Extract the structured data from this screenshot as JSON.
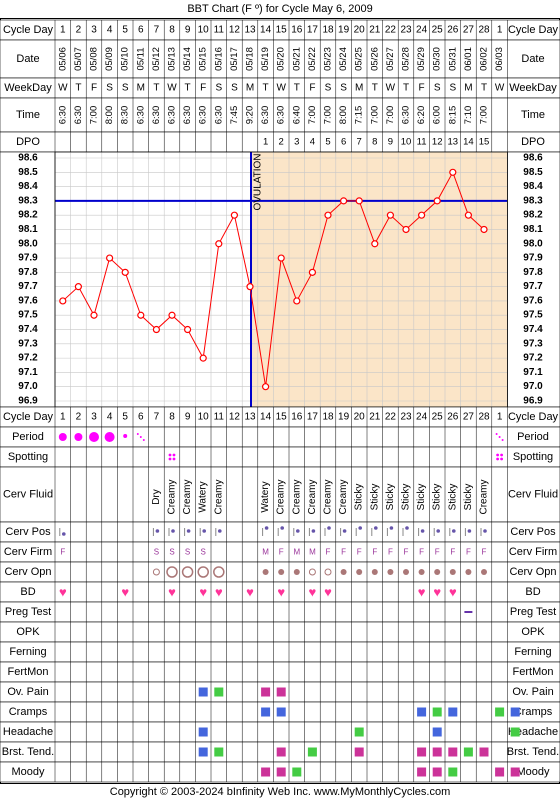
{
  "title": "BBT Chart (F º) for Cycle May 6, 2009",
  "footer": "Copyright © 2003-2024 bInfinity Web Inc.    www.MyMonthlyCycles.com",
  "ovulation_label": "OVULATION",
  "labels": {
    "cycle_day": "Cycle Day",
    "date": "Date",
    "weekday": "WeekDay",
    "time": "Time",
    "dpo": "DPO",
    "period": "Period",
    "spotting": "Spotting",
    "cerv_fluid": "Cerv Fluid",
    "cerv_pos": "Cerv Pos",
    "cerv_firm": "Cerv Firm",
    "cerv_opn": "Cerv Opn",
    "bd": "BD",
    "preg_test": "Preg Test",
    "opk": "OPK",
    "ferning": "Ferning",
    "fertmon": "FertMon",
    "ov_pain": "Ov. Pain",
    "cramps": "Cramps",
    "headache": "Headache",
    "brst_tend": "Brst. Tend.",
    "moody": "Moody"
  },
  "colors": {
    "line": "#ff0000",
    "coverline": "#0000cc",
    "period": "#ff00ff",
    "luteal_bg": "#fbe5c8",
    "follicular_bg": "#ffffff",
    "ov_pain": "#4466dd",
    "cramps": "#44cc44",
    "magenta_sq": "#cc3399",
    "bd": "#ff3399"
  },
  "chart_data": {
    "type": "line",
    "cycle_days": [
      1,
      2,
      3,
      4,
      5,
      6,
      7,
      8,
      9,
      10,
      11,
      12,
      13,
      14,
      15,
      16,
      17,
      18,
      19,
      20,
      21,
      22,
      23,
      24,
      25,
      26,
      27,
      28,
      1
    ],
    "dates": [
      "05/06",
      "05/07",
      "05/08",
      "05/09",
      "05/10",
      "05/11",
      "05/12",
      "05/13",
      "05/14",
      "05/15",
      "05/16",
      "05/17",
      "05/18",
      "05/19",
      "05/20",
      "05/21",
      "05/22",
      "05/23",
      "05/24",
      "05/25",
      "05/26",
      "05/27",
      "05/28",
      "05/29",
      "05/30",
      "05/31",
      "06/01",
      "06/02",
      "06/03"
    ],
    "weekdays": [
      "W",
      "T",
      "F",
      "S",
      "S",
      "M",
      "T",
      "W",
      "T",
      "F",
      "S",
      "S",
      "M",
      "T",
      "W",
      "T",
      "F",
      "S",
      "S",
      "M",
      "T",
      "W",
      "T",
      "F",
      "S",
      "S",
      "M",
      "T",
      "W"
    ],
    "times": [
      "6:30",
      "6:30",
      "7:00",
      "8:00",
      "8:30",
      "6:30",
      "6:30",
      "6:30",
      "6:30",
      "6:30",
      "6:30",
      "7:45",
      "9:20",
      "6:30",
      "6:30",
      "6:40",
      "7:00",
      "7:00",
      "8:00",
      "7:15",
      "7:00",
      "7:00",
      "6:30",
      "6:20",
      "6:00",
      "8:15",
      "7:10",
      "7:00",
      ""
    ],
    "dpo": [
      "",
      "",
      "",
      "",
      "",
      "",
      "",
      "",
      "",
      "",
      "",
      "",
      "",
      "1",
      "2",
      "3",
      "4",
      "5",
      "6",
      "7",
      "8",
      "9",
      "10",
      "11",
      "12",
      "13",
      "14",
      "15",
      ""
    ],
    "temperatures": [
      97.6,
      97.7,
      97.5,
      97.9,
      97.8,
      97.5,
      97.4,
      97.5,
      97.4,
      97.2,
      98.0,
      98.2,
      97.7,
      97.0,
      97.9,
      97.6,
      97.8,
      98.2,
      98.3,
      98.3,
      98.0,
      98.2,
      98.1,
      98.2,
      98.3,
      98.5,
      98.2,
      98.1,
      null
    ],
    "y_ticks": [
      "98.6",
      "98.5",
      "98.4",
      "98.3",
      "98.2",
      "98.1",
      "98.0",
      "97.9",
      "97.8",
      "97.7",
      "97.6",
      "97.5",
      "97.4",
      "97.3",
      "97.2",
      "97.1",
      "97.0",
      "96.9"
    ],
    "ylim": [
      96.9,
      98.6
    ],
    "coverline": 98.3,
    "ovulation_day": 13,
    "grid": true
  },
  "cervical_fluid": [
    "",
    "",
    "",
    "",
    "",
    "",
    "Dry",
    "Creamy",
    "Creamy",
    "Watery",
    "Creamy",
    "",
    "",
    "Watery",
    "Creamy",
    "Creamy",
    "Creamy",
    "Creamy",
    "Creamy",
    "Sticky",
    "Sticky",
    "Sticky",
    "Sticky",
    "Sticky",
    "Sticky",
    "Sticky",
    "Sticky",
    "Creamy",
    ""
  ],
  "cerv_firm": [
    "F",
    "",
    "",
    "",
    "",
    "",
    "S",
    "S",
    "S",
    "S",
    "",
    "",
    "",
    "M",
    "F",
    "M",
    "M",
    "F",
    "F",
    "F",
    "F",
    "F",
    "F",
    "F",
    "F",
    "F",
    "F",
    "F",
    ""
  ],
  "period": [
    "big",
    "big",
    "big",
    "big",
    "small",
    "dots",
    "",
    "",
    "",
    "",
    "",
    "",
    "",
    "",
    "",
    "",
    "",
    "",
    "",
    "",
    "",
    "",
    "",
    "",
    "",
    "",
    "",
    "",
    "dots"
  ],
  "spotting": [
    "",
    "",
    "",
    "",
    "",
    "",
    "",
    "dots",
    "",
    "",
    "",
    "",
    "",
    "",
    "",
    "",
    "",
    "",
    "",
    "",
    "",
    "",
    "",
    "",
    "",
    "",
    "",
    "",
    "dots"
  ],
  "cerv_pos": [
    "low",
    "",
    "",
    "",
    "",
    "",
    "mid",
    "mid",
    "mid",
    "mid",
    "mid",
    "",
    "",
    "high",
    "high",
    "mid",
    "mid",
    "high",
    "mid",
    "high",
    "high",
    "high",
    "high",
    "mid",
    "mid",
    "mid",
    "mid",
    "mid",
    ""
  ],
  "cerv_opn": [
    "",
    "",
    "",
    "",
    "",
    "",
    "small",
    "big",
    "big",
    "big",
    "big",
    "",
    "",
    "med",
    "med",
    "med",
    "small",
    "small",
    "med",
    "med",
    "med",
    "med",
    "med",
    "med",
    "med",
    "med",
    "med",
    "med",
    ""
  ],
  "bd": [
    true,
    false,
    false,
    false,
    true,
    false,
    false,
    true,
    false,
    true,
    true,
    false,
    true,
    false,
    true,
    false,
    true,
    true,
    false,
    false,
    false,
    false,
    false,
    true,
    true,
    true,
    false,
    false,
    false
  ],
  "preg_test_day": 26,
  "ov_pain": [
    {
      "d": 9,
      "c": "ov_pain"
    },
    {
      "d": 10,
      "c": "cramps"
    },
    {
      "d": 13,
      "c": "magenta_sq"
    },
    {
      "d": 14,
      "c": "magenta_sq"
    }
  ],
  "cramps": [
    {
      "d": 13,
      "c": "ov_pain"
    },
    {
      "d": 14,
      "c": "ov_pain"
    },
    {
      "d": 23,
      "c": "ov_pain"
    },
    {
      "d": 24,
      "c": "cramps"
    },
    {
      "d": 25,
      "c": "ov_pain"
    },
    {
      "d": 28,
      "c": "cramps"
    },
    {
      "d": 29,
      "c": "ov_pain"
    }
  ],
  "headache": [
    {
      "d": 9,
      "c": "ov_pain"
    },
    {
      "d": 19,
      "c": "cramps"
    },
    {
      "d": 24,
      "c": "ov_pain"
    },
    {
      "d": 29,
      "c": "cramps"
    }
  ],
  "brst_tend": [
    {
      "d": 9,
      "c": "ov_pain"
    },
    {
      "d": 10,
      "c": "cramps"
    },
    {
      "d": 14,
      "c": "magenta_sq"
    },
    {
      "d": 16,
      "c": "cramps"
    },
    {
      "d": 19,
      "c": "magenta_sq"
    },
    {
      "d": 23,
      "c": "magenta_sq"
    },
    {
      "d": 24,
      "c": "magenta_sq"
    },
    {
      "d": 25,
      "c": "magenta_sq"
    },
    {
      "d": 26,
      "c": "cramps"
    },
    {
      "d": 27,
      "c": "magenta_sq"
    }
  ],
  "moody": [
    {
      "d": 13,
      "c": "magenta_sq"
    },
    {
      "d": 14,
      "c": "magenta_sq"
    },
    {
      "d": 15,
      "c": "cramps"
    },
    {
      "d": 23,
      "c": "magenta_sq"
    },
    {
      "d": 24,
      "c": "magenta_sq"
    },
    {
      "d": 25,
      "c": "cramps"
    },
    {
      "d": 28,
      "c": "magenta_sq"
    },
    {
      "d": 29,
      "c": "magenta_sq"
    }
  ]
}
